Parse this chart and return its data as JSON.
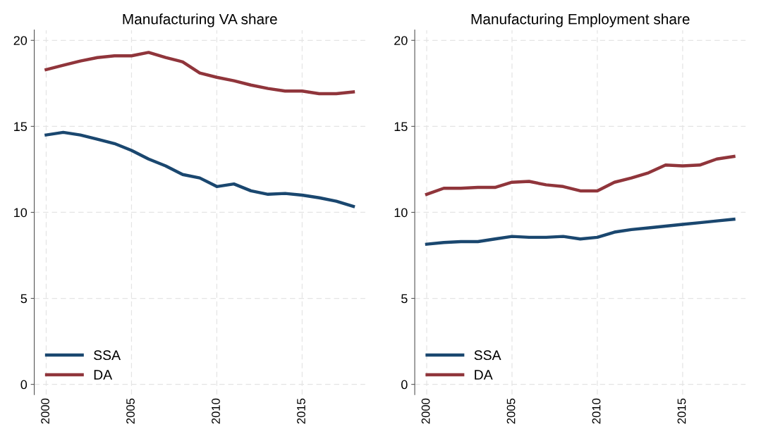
{
  "chart_data": [
    {
      "type": "line",
      "title": "Manufacturing VA share",
      "x": [
        2000,
        2001,
        2002,
        2003,
        2004,
        2005,
        2006,
        2007,
        2008,
        2009,
        2010,
        2011,
        2012,
        2013,
        2014,
        2015,
        2016,
        2017,
        2018
      ],
      "series": [
        {
          "name": "SSA",
          "color": "#1a476f",
          "values": [
            14.5,
            14.65,
            14.5,
            14.25,
            14.0,
            13.6,
            13.1,
            12.7,
            12.2,
            12.0,
            11.5,
            11.65,
            11.25,
            11.05,
            11.1,
            11.0,
            10.85,
            10.65,
            10.35
          ]
        },
        {
          "name": "DA",
          "color": "#90353b",
          "values": [
            18.3,
            18.55,
            18.8,
            19.0,
            19.1,
            19.1,
            19.3,
            19.0,
            18.75,
            18.1,
            17.85,
            17.65,
            17.4,
            17.2,
            17.05,
            17.05,
            16.9,
            16.9,
            17.0
          ]
        }
      ],
      "xlim": [
        1999.3,
        2018.7
      ],
      "xticks": [
        2000,
        2005,
        2010,
        2015
      ],
      "ylim": [
        -0.6,
        20.6
      ],
      "yticks": [
        0,
        5,
        10,
        15,
        20
      ],
      "grid": true,
      "legend": "bottom left",
      "line_style": "solid",
      "marker": "none"
    },
    {
      "type": "line",
      "title": "Manufacturing Employment share",
      "x": [
        2000,
        2001,
        2002,
        2003,
        2004,
        2005,
        2006,
        2007,
        2008,
        2009,
        2010,
        2011,
        2012,
        2013,
        2014,
        2015,
        2016,
        2017,
        2018
      ],
      "series": [
        {
          "name": "SSA",
          "color": "#1a476f",
          "values": [
            8.15,
            8.25,
            8.3,
            8.3,
            8.45,
            8.6,
            8.55,
            8.55,
            8.6,
            8.45,
            8.55,
            8.85,
            9.0,
            9.1,
            9.2,
            9.3,
            9.4,
            9.5,
            9.6
          ]
        },
        {
          "name": "DA",
          "color": "#90353b",
          "values": [
            11.05,
            11.4,
            11.4,
            11.45,
            11.45,
            11.75,
            11.8,
            11.6,
            11.5,
            11.25,
            11.25,
            11.75,
            12.0,
            12.3,
            12.75,
            12.7,
            12.75,
            13.1,
            13.25
          ]
        }
      ],
      "xlim": [
        1999.3,
        2018.7
      ],
      "xticks": [
        2000,
        2005,
        2010,
        2015
      ],
      "ylim": [
        -0.6,
        20.6
      ],
      "yticks": [
        0,
        5,
        10,
        15,
        20
      ],
      "grid": true,
      "legend": "bottom left",
      "line_style": "solid",
      "marker": "none"
    }
  ]
}
